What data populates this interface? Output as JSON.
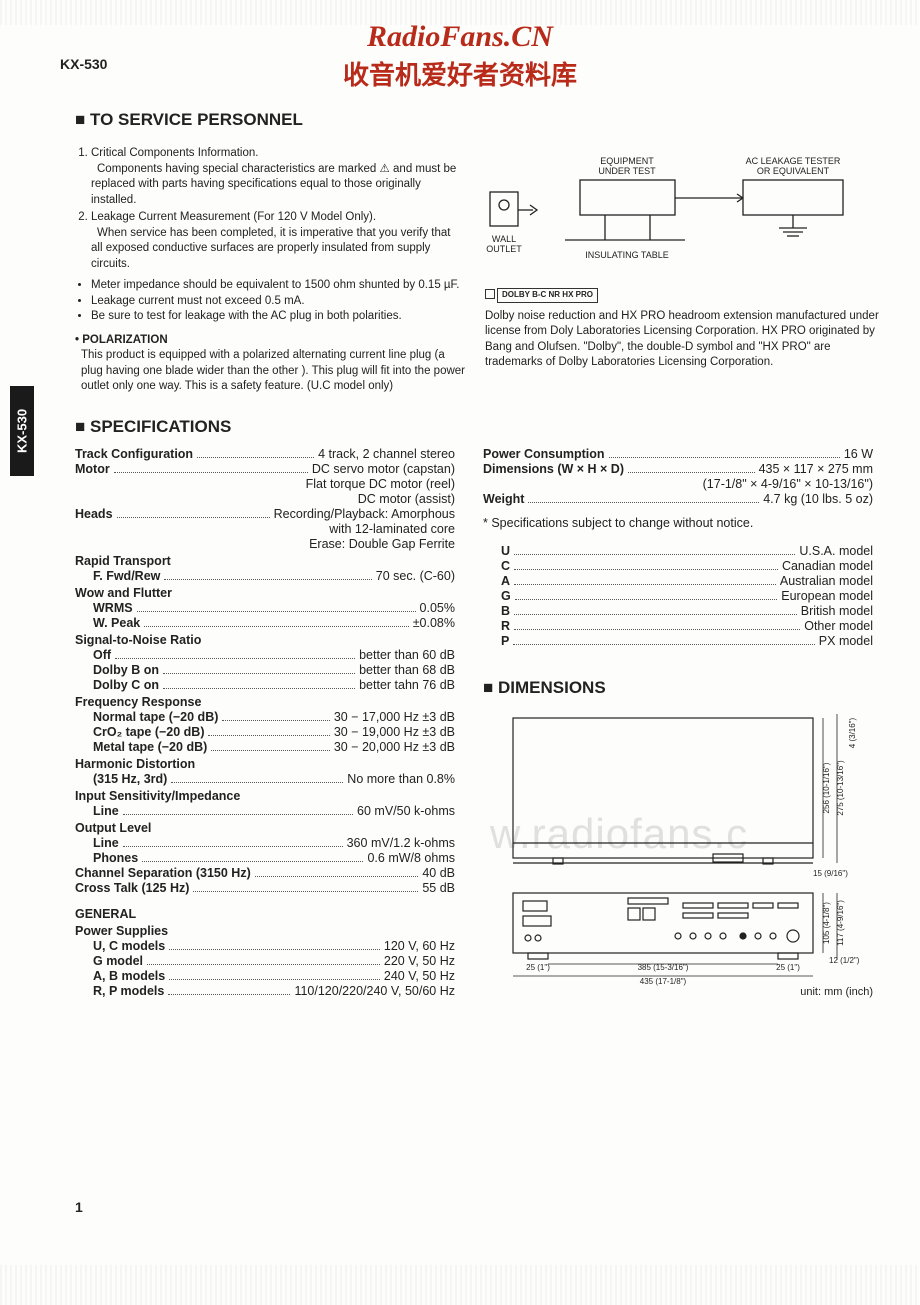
{
  "watermark": {
    "site": "RadioFans.CN",
    "subtitle": "收音机爱好者资料库",
    "faded": "w.radiofans.c"
  },
  "model": "KX-530",
  "page_number": "1",
  "section_service": {
    "title": "TO SERVICE PERSONNEL",
    "note1_head": "Critical Components Information.",
    "note1_body": "Components having special characteristics are marked ⚠ and must be replaced with parts having specifications equal to those originally installed.",
    "note2_head": "Leakage Current Measurement (For 120 V Model Only).",
    "note2_body": "When service has been completed, it is imperative that you verify that all exposed conductive surfaces are properly insulated from supply circuits.",
    "b1": "Meter impedance should be equivalent to 1500 ohm shunted by 0.15 µF.",
    "b2": "Leakage current must not exceed 0.5 mA.",
    "b3": "Be sure to test for leakage  with the AC plug in both polarities.",
    "polar_h": "POLARIZATION",
    "polar_b": "This product is equipped with a polarized alternating current line plug (a plug having one blade wider than the other ). This plug will fit into the power outlet only one  way. This is a safety feature.  (U.C model only)"
  },
  "diagram": {
    "wall": "WALL OUTLET",
    "equip": "EQUIPMENT UNDER TEST",
    "tester": "AC LEAKAGE TESTER OR EQUIVALENT",
    "table": "INSULATING TABLE"
  },
  "dolby": {
    "badge": "DOLBY B-C NR HX PRO",
    "text": "Dolby noise reduction and HX PRO headroom extension manufactured under license from Doly Laboratories Licensing Corporation. HX PRO originated by Bang and Olufsen. \"Dolby\", the double-D symbol and \"HX PRO\" are trademarks of Dolby Laboratories Licensing Corporation."
  },
  "section_specs": {
    "title": "SPECIFICATIONS",
    "left": [
      {
        "label": "Track Configuration",
        "value": "4 track, 2 channel stereo"
      },
      {
        "label": "Motor",
        "value": "DC servo motor (capstan)"
      },
      {
        "cont": "Flat torque DC motor (reel)"
      },
      {
        "cont": "DC motor (assist)"
      },
      {
        "label": "Heads",
        "value": "Recording/Playback:  Amorphous"
      },
      {
        "cont": "with 12-laminated core"
      },
      {
        "cont": "Erase:  Double Gap Ferrite"
      },
      {
        "head": "Rapid Transport"
      },
      {
        "sub": "F. Fwd/Rew",
        "value": "70 sec. (C-60)"
      },
      {
        "head": "Wow and Flutter"
      },
      {
        "sub": "WRMS",
        "value": "0.05%"
      },
      {
        "sub": "W. Peak",
        "value": "±0.08%"
      },
      {
        "head": "Signal-to-Noise Ratio"
      },
      {
        "sub": "Off",
        "value": "better than 60 dB"
      },
      {
        "sub": "Dolby B on",
        "value": "better than 68 dB"
      },
      {
        "sub": "Dolby C on",
        "value": "better tahn 76 dB"
      },
      {
        "head": "Frequency Response"
      },
      {
        "sub": "Normal tape (−20 dB)",
        "value": "30 − 17,000 Hz ±3 dB"
      },
      {
        "sub": "CrO₂ tape (−20 dB)",
        "value": "30 − 19,000 Hz ±3 dB"
      },
      {
        "sub": "Metal tape (−20 dB)",
        "value": "30 − 20,000 Hz ±3 dB"
      },
      {
        "head": "Harmonic Distortion"
      },
      {
        "sub": "(315 Hz, 3rd)",
        "value": "No more than 0.8%"
      },
      {
        "head": "Input Sensitivity/Impedance"
      },
      {
        "sub": "Line",
        "value": "60 mV/50 k-ohms"
      },
      {
        "head": "Output Level"
      },
      {
        "sub": "Line",
        "value": "360 mV/1.2 k-ohms"
      },
      {
        "sub": "Phones",
        "value": "0.6 mW/8 ohms"
      },
      {
        "label": "Channel Separation (3150 Hz)",
        "value": "40 dB"
      },
      {
        "label": "Cross Talk (125 Hz)",
        "value": "55 dB"
      }
    ],
    "general_h": "GENERAL",
    "power_h": "Power Supplies",
    "power": [
      {
        "sub": "U, C models",
        "value": "120 V, 60 Hz"
      },
      {
        "sub": "G model",
        "value": "220 V, 50 Hz"
      },
      {
        "sub": "A, B models",
        "value": "240 V, 50 Hz"
      },
      {
        "sub": "R, P models",
        "value": "110/120/220/240 V, 50/60 Hz"
      }
    ],
    "right": [
      {
        "label": "Power Consumption",
        "value": "16 W"
      },
      {
        "label": "Dimensions (W × H × D)",
        "value": "435 × 117 × 275 mm"
      },
      {
        "cont": "(17-1/8\" × 4-9/16\" × 10-13/16\")"
      },
      {
        "label": "Weight",
        "value": "4.7 kg (10 lbs. 5 oz)"
      }
    ],
    "notice": "* Specifications subject to change without notice.",
    "models": [
      {
        "sub": "U",
        "value": "U.S.A. model"
      },
      {
        "sub": "C",
        "value": "Canadian model"
      },
      {
        "sub": "A",
        "value": "Australian model"
      },
      {
        "sub": "G",
        "value": "European model"
      },
      {
        "sub": "B",
        "value": "British model"
      },
      {
        "sub": "R",
        "value": "Other model"
      },
      {
        "sub": "P",
        "value": "PX model"
      }
    ]
  },
  "section_dim": {
    "title": "DIMENSIONS",
    "unit": "unit: mm  (inch)",
    "d_256": "256 (10-1/16\")",
    "d_275": "275 (10-13/16\")",
    "d_4": "4 (3/16\")",
    "d_15": "15 (9/16\")",
    "d_25": "25 (1\")",
    "d_385": "385 (15-3/16\")",
    "d_435": "435 (17-1/8\")",
    "d_105": "105 (4-1/8\")",
    "d_117": "117 (4-9/16\")",
    "d_12": "12 (1/2\")"
  }
}
